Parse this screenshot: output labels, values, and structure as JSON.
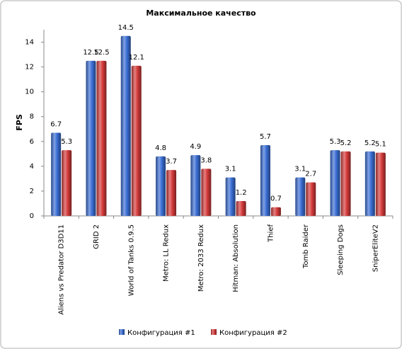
{
  "chart_data": {
    "type": "bar",
    "title": "Максимальное  качество",
    "y_label": "FPS",
    "categories": [
      "Aliens vs Predator D3D11",
      "GRID 2",
      "World of Tanks 0.9.5",
      "Metro: LL Redux",
      "Metro: 2033 Redux",
      "Hitman: Absolution",
      "Thief",
      "Tomb Raider",
      "Sleeping Dogs",
      "SniperEliteV2"
    ],
    "series": [
      {
        "name": "Конфигурация #1",
        "color": "#3b6fd6",
        "values": [
          6.7,
          12.5,
          14.5,
          4.8,
          4.9,
          3.1,
          5.7,
          3.1,
          5.3,
          5.2
        ]
      },
      {
        "name": "Конфигурация #2",
        "color": "#d63b3b",
        "values": [
          5.3,
          12.5,
          12.1,
          3.7,
          3.8,
          1.2,
          0.7,
          2.7,
          5.2,
          5.1
        ]
      }
    ],
    "ylim": [
      0,
      15
    ],
    "yticks": [
      0,
      2,
      4,
      6,
      8,
      10,
      12,
      14
    ],
    "grid": false,
    "legend": "bottom"
  }
}
